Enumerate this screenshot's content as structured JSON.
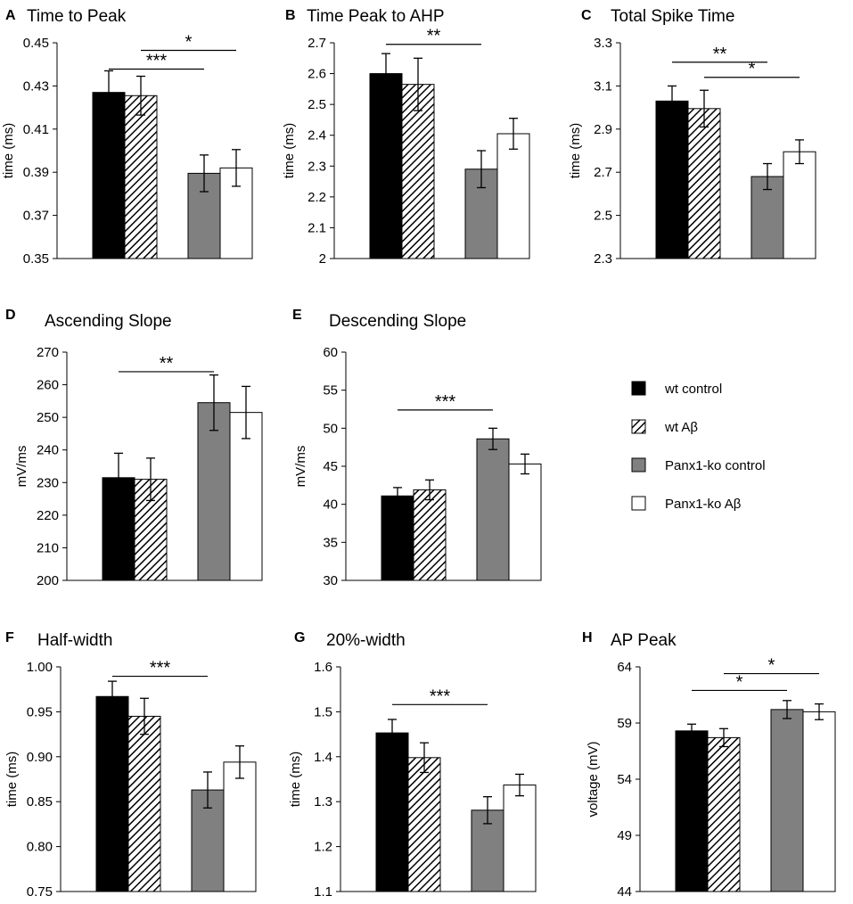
{
  "colors": {
    "wt_control": "#000000",
    "panx_control": "#808080",
    "panx_ab": "#ffffff",
    "stroke": "#000000"
  },
  "legend": [
    {
      "label": "wt control",
      "style": "solid-black"
    },
    {
      "label": "wt Aβ",
      "style": "hatch"
    },
    {
      "label": "Panx1-ko control",
      "style": "solid-gray"
    },
    {
      "label": "Panx1-ko Aβ",
      "style": "white"
    }
  ],
  "chart_data": [
    {
      "letter": "A",
      "type": "bar",
      "title": "Time to Peak",
      "ylabel": "time (ms)",
      "ylim": [
        0.35,
        0.45
      ],
      "ticks": [
        "0.35",
        "0.37",
        "0.39",
        "0.41",
        "0.43",
        "0.45"
      ],
      "categories": [
        "wt control",
        "wt Aβ",
        "Panx1-ko control",
        "Panx1-ko Aβ"
      ],
      "values": [
        0.427,
        0.4255,
        0.3895,
        0.392
      ],
      "errors": [
        0.01,
        0.009,
        0.0085,
        0.0085
      ],
      "significance": [
        {
          "from": 1,
          "to": 3,
          "label": "*",
          "y": 0.4465
        },
        {
          "from": 0,
          "to": 2,
          "label": "***",
          "y": 0.4378
        }
      ]
    },
    {
      "letter": "B",
      "type": "bar",
      "title": "Time Peak to AHP",
      "ylabel": "time (ms)",
      "ylim": [
        2,
        2.7
      ],
      "ticks": [
        "2",
        "2.1",
        "2.2",
        "2.3",
        "2.4",
        "2.5",
        "2.6",
        "2.7"
      ],
      "categories": [
        "wt control",
        "wt Aβ",
        "Panx1-ko control",
        "Panx1-ko Aβ"
      ],
      "values": [
        2.6,
        2.565,
        2.29,
        2.405
      ],
      "errors": [
        0.065,
        0.085,
        0.06,
        0.05
      ],
      "significance": [
        {
          "from": 0,
          "to": 2,
          "label": "**",
          "y": 2.695
        }
      ]
    },
    {
      "letter": "C",
      "type": "bar",
      "title": "Total Spike Time",
      "ylabel": "time (ms)",
      "ylim": [
        2.3,
        3.3
      ],
      "ticks": [
        "2.3",
        "2.5",
        "2.7",
        "2.9",
        "3.1",
        "3.3"
      ],
      "categories": [
        "wt control",
        "wt Aβ",
        "Panx1-ko control",
        "Panx1-ko Aβ"
      ],
      "values": [
        3.03,
        2.995,
        2.68,
        2.795
      ],
      "errors": [
        0.07,
        0.085,
        0.06,
        0.055
      ],
      "significance": [
        {
          "from": 0,
          "to": 2,
          "label": "**",
          "y": 3.21
        },
        {
          "from": 1,
          "to": 3,
          "label": "*",
          "y": 3.14
        }
      ]
    },
    {
      "letter": "D",
      "type": "bar",
      "title": "Ascending Slope",
      "ylabel": "mV/ms",
      "ylim": [
        200,
        270
      ],
      "ticks": [
        "200",
        "210",
        "220",
        "230",
        "240",
        "250",
        "260",
        "270"
      ],
      "categories": [
        "wt control",
        "wt Aβ",
        "Panx1-ko control",
        "Panx1-ko Aβ"
      ],
      "values": [
        231.5,
        231,
        254.5,
        251.5
      ],
      "errors": [
        7.5,
        6.5,
        8.5,
        8
      ],
      "significance": [
        {
          "from": 0,
          "to": 2,
          "label": "**",
          "y": 264
        }
      ]
    },
    {
      "letter": "E",
      "type": "bar",
      "title": "Descending Slope",
      "ylabel": "mV/ms",
      "ylim": [
        30,
        60
      ],
      "ticks": [
        "30",
        "35",
        "40",
        "45",
        "50",
        "55",
        "60"
      ],
      "categories": [
        "wt control",
        "wt Aβ",
        "Panx1-ko control",
        "Panx1-ko Aβ"
      ],
      "values": [
        41.1,
        41.9,
        48.6,
        45.3
      ],
      "errors": [
        1.1,
        1.3,
        1.4,
        1.3
      ],
      "significance": [
        {
          "from": 0,
          "to": 2,
          "label": "***",
          "y": 52.4
        }
      ]
    },
    {
      "letter": "F",
      "type": "bar",
      "title": "Half-width",
      "ylabel": "time (ms)",
      "ylim": [
        0.75,
        1.0
      ],
      "ticks": [
        "0.75",
        "0.80",
        "0.85",
        "0.90",
        "0.95",
        "1.00"
      ],
      "categories": [
        "wt control",
        "wt Aβ",
        "Panx1-ko control",
        "Panx1-ko Aβ"
      ],
      "values": [
        0.967,
        0.945,
        0.863,
        0.894
      ],
      "errors": [
        0.017,
        0.02,
        0.02,
        0.018
      ],
      "significance": [
        {
          "from": 0,
          "to": 2,
          "label": "***",
          "y": 0.9895
        }
      ]
    },
    {
      "letter": "G",
      "type": "bar",
      "title": "20%-width",
      "ylabel": "time (ms)",
      "ylim": [
        1.1,
        1.6
      ],
      "ticks": [
        "1.1",
        "1.2",
        "1.3",
        "1.4",
        "1.5",
        "1.6"
      ],
      "categories": [
        "wt control",
        "wt Aβ",
        "Panx1-ko control",
        "Panx1-ko Aβ"
      ],
      "values": [
        1.453,
        1.398,
        1.281,
        1.337
      ],
      "errors": [
        0.03,
        0.033,
        0.03,
        0.024
      ],
      "significance": [
        {
          "from": 0,
          "to": 2,
          "label": "***",
          "y": 1.516
        }
      ]
    },
    {
      "letter": "H",
      "type": "bar",
      "title": "AP Peak",
      "ylabel": "voltage (mV)",
      "ylim": [
        44,
        64
      ],
      "ticks": [
        "44",
        "49",
        "54",
        "59",
        "64"
      ],
      "categories": [
        "wt control",
        "wt Aβ",
        "Panx1-ko control",
        "Panx1-ko Aβ"
      ],
      "values": [
        58.3,
        57.7,
        60.2,
        60.0
      ],
      "errors": [
        0.6,
        0.8,
        0.8,
        0.7
      ],
      "significance": [
        {
          "from": 0,
          "to": 2,
          "label": "*",
          "y": 61.9
        },
        {
          "from": 1,
          "to": 3,
          "label": "*",
          "y": 63.4
        }
      ]
    }
  ]
}
